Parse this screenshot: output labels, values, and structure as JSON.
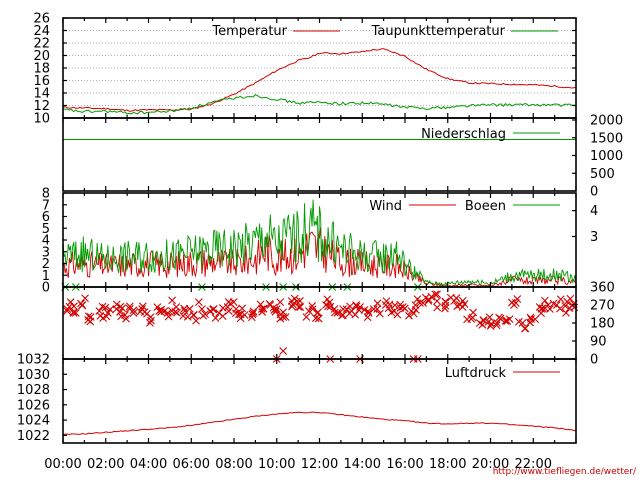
{
  "source_note": "http://www.tiefliegen.de/wetter/",
  "x_ticks": [
    "00:00",
    "02:00",
    "04:00",
    "06:00",
    "08:00",
    "10:00",
    "12:00",
    "14:00",
    "16:00",
    "18:00",
    "20:00",
    "22:00"
  ],
  "colors": {
    "red": "#d40000",
    "green": "#009900",
    "axis": "#000000",
    "grid": "#9a9a9a"
  },
  "chart_data": [
    {
      "type": "line",
      "x_unit": "hours",
      "xlim": [
        0,
        24
      ],
      "ylim": [
        10,
        26
      ],
      "y_ticks": [
        "10",
        "12",
        "14",
        "16",
        "18",
        "20",
        "22",
        "24",
        "26"
      ],
      "grid": true,
      "legend": "top-right",
      "series": [
        {
          "name": "Temperatur",
          "color": "#d40000",
          "x": [
            0,
            1,
            2,
            3,
            4,
            5,
            6,
            7,
            8,
            9,
            10,
            11,
            11.5,
            12,
            13,
            14,
            14.5,
            15,
            16,
            16.5,
            17,
            18,
            19,
            20,
            21,
            22,
            23,
            24
          ],
          "y": [
            11.7,
            11.6,
            11.5,
            11.2,
            11.3,
            11.3,
            11.4,
            12.3,
            13.8,
            15.6,
            17.6,
            19.2,
            19.6,
            20.4,
            20.3,
            20.6,
            20.9,
            21.0,
            19.9,
            18.8,
            17.8,
            16.3,
            15.6,
            15.5,
            15.4,
            15.3,
            15.1,
            14.8
          ]
        },
        {
          "name": "Taupunkttemperatur",
          "color": "#009900",
          "x": [
            0,
            1,
            2,
            3,
            4,
            5,
            6,
            7,
            8,
            9,
            10,
            11,
            12,
            13,
            14,
            15,
            16,
            17,
            18,
            19,
            20,
            21,
            22,
            23,
            24
          ],
          "y": [
            11.3,
            11.0,
            11.1,
            10.8,
            10.9,
            11.1,
            11.6,
            12.5,
            13.2,
            13.6,
            13.0,
            12.4,
            12.5,
            12.3,
            12.4,
            12.2,
            11.7,
            11.6,
            11.7,
            12.0,
            12.1,
            12.1,
            12.1,
            12.1,
            12.0
          ]
        }
      ]
    },
    {
      "type": "line",
      "x_unit": "hours",
      "xlim": [
        0,
        24
      ],
      "ylim": [
        0,
        2000
      ],
      "y_ticks": [
        "2000",
        "1500",
        "1000",
        "500",
        "0"
      ],
      "legend": "top-right",
      "series": [
        {
          "name": "Niederschlag",
          "color": "#009900",
          "x": [
            0,
            24
          ],
          "y": [
            1450,
            1450
          ]
        }
      ]
    },
    {
      "type": "line",
      "x_unit": "hours",
      "xlim": [
        0,
        24
      ],
      "ylim": [
        0,
        8
      ],
      "y_ticks_left": [
        "0",
        "1",
        "2",
        "3",
        "4",
        "5",
        "6",
        "7",
        "8"
      ],
      "y_ticks_right": [
        "3",
        "4"
      ],
      "legend": "top-right",
      "series": [
        {
          "name": "Wind",
          "color": "#d40000",
          "x": [
            0,
            1,
            2,
            3,
            4,
            5,
            6,
            7,
            8,
            9,
            9.5,
            10,
            10.5,
            11,
            11.5,
            12,
            12.5,
            13,
            14,
            15,
            15.5,
            16,
            16.5,
            17,
            17.5,
            18,
            19,
            20,
            21,
            22,
            23,
            24
          ],
          "y": [
            1.8,
            2.0,
            1.8,
            1.9,
            2.0,
            1.9,
            2.1,
            2.2,
            2.0,
            2.4,
            3.2,
            2.3,
            2.7,
            2.8,
            3.6,
            3.3,
            2.7,
            2.2,
            2.0,
            1.8,
            1.9,
            1.4,
            0.8,
            0.3,
            0.2,
            0.1,
            0.2,
            0.1,
            0.6,
            0.5,
            0.6,
            0.4
          ]
        },
        {
          "name": "Boeen",
          "color": "#009900",
          "x": [
            0,
            1,
            2,
            3,
            4,
            5,
            6,
            7,
            8,
            9,
            9.5,
            10,
            10.5,
            11,
            11.5,
            12,
            12.5,
            13,
            14,
            15,
            15.5,
            16,
            16.5,
            17,
            17.5,
            18,
            19,
            20,
            21,
            22,
            23,
            24
          ],
          "y": [
            2.6,
            2.8,
            2.4,
            2.6,
            2.7,
            2.6,
            2.9,
            3.2,
            3.4,
            3.8,
            4.6,
            3.6,
            4.4,
            4.2,
            5.2,
            4.6,
            3.8,
            3.3,
            2.7,
            2.5,
            3.1,
            1.9,
            1.2,
            0.4,
            0.3,
            0.3,
            0.5,
            0.3,
            1.0,
            1.0,
            1.1,
            0.7
          ]
        }
      ]
    },
    {
      "type": "scatter",
      "x_unit": "hours",
      "xlim": [
        0,
        24
      ],
      "ylim": [
        0,
        360
      ],
      "y_ticks": [
        "360",
        "270",
        "180",
        "90",
        "0"
      ],
      "series": [
        {
          "name": "",
          "color": "#d40000",
          "x": [
            0.2,
            0.5,
            0.9,
            1.3,
            1.7,
            2.1,
            2.5,
            2.9,
            3.3,
            3.7,
            4.1,
            4.5,
            4.9,
            5.3,
            5.7,
            6.1,
            6.5,
            6.9,
            7.3,
            7.7,
            8.1,
            8.5,
            8.9,
            9.3,
            9.7,
            10.0,
            10.3,
            10.7,
            11.1,
            11.5,
            11.9,
            12.3,
            12.7,
            13.1,
            13.5,
            13.9,
            14.3,
            14.7,
            15.1,
            15.5,
            15.9,
            16.3,
            16.7,
            17.1,
            17.5,
            17.9,
            18.3,
            18.7,
            19.1,
            19.5,
            19.9,
            20.3,
            20.7,
            21.1,
            21.5,
            21.9,
            22.3,
            22.7,
            23.1,
            23.5,
            23.9,
            10.0,
            10.3,
            12.5,
            13.9,
            16.4,
            16.6
          ],
          "y": [
            250,
            230,
            270,
            210,
            240,
            230,
            250,
            220,
            230,
            250,
            210,
            240,
            230,
            260,
            240,
            220,
            250,
            240,
            230,
            260,
            250,
            220,
            230,
            250,
            270,
            250,
            210,
            290,
            260,
            240,
            230,
            270,
            250,
            220,
            240,
            260,
            230,
            250,
            270,
            240,
            260,
            240,
            280,
            290,
            290,
            285,
            290,
            260,
            200,
            180,
            185,
            180,
            190,
            270,
            180,
            200,
            260,
            270,
            270,
            265,
            275,
            0,
            40,
            0,
            0,
            0,
            0
          ]
        }
      ]
    },
    {
      "type": "line",
      "x_unit": "hours",
      "xlim": [
        0,
        24
      ],
      "ylim": [
        1021,
        1032
      ],
      "y_ticks": [
        "1022",
        "1024",
        "1026",
        "1028",
        "1030",
        "1032"
      ],
      "legend": "top-right",
      "series": [
        {
          "name": "Luftdruck",
          "color": "#d40000",
          "x": [
            0,
            1,
            2,
            3,
            4,
            5,
            6,
            7,
            8,
            9,
            10,
            11,
            12,
            13,
            14,
            15,
            16,
            17,
            18,
            19,
            20,
            21,
            22,
            23,
            24
          ],
          "y": [
            1022.1,
            1022.2,
            1022.4,
            1022.6,
            1022.8,
            1023.0,
            1023.3,
            1023.7,
            1024.1,
            1024.5,
            1024.8,
            1025.0,
            1025.0,
            1024.7,
            1024.4,
            1024.1,
            1023.9,
            1023.6,
            1023.5,
            1023.6,
            1023.6,
            1023.4,
            1023.2,
            1023.0,
            1022.6
          ]
        }
      ]
    }
  ]
}
